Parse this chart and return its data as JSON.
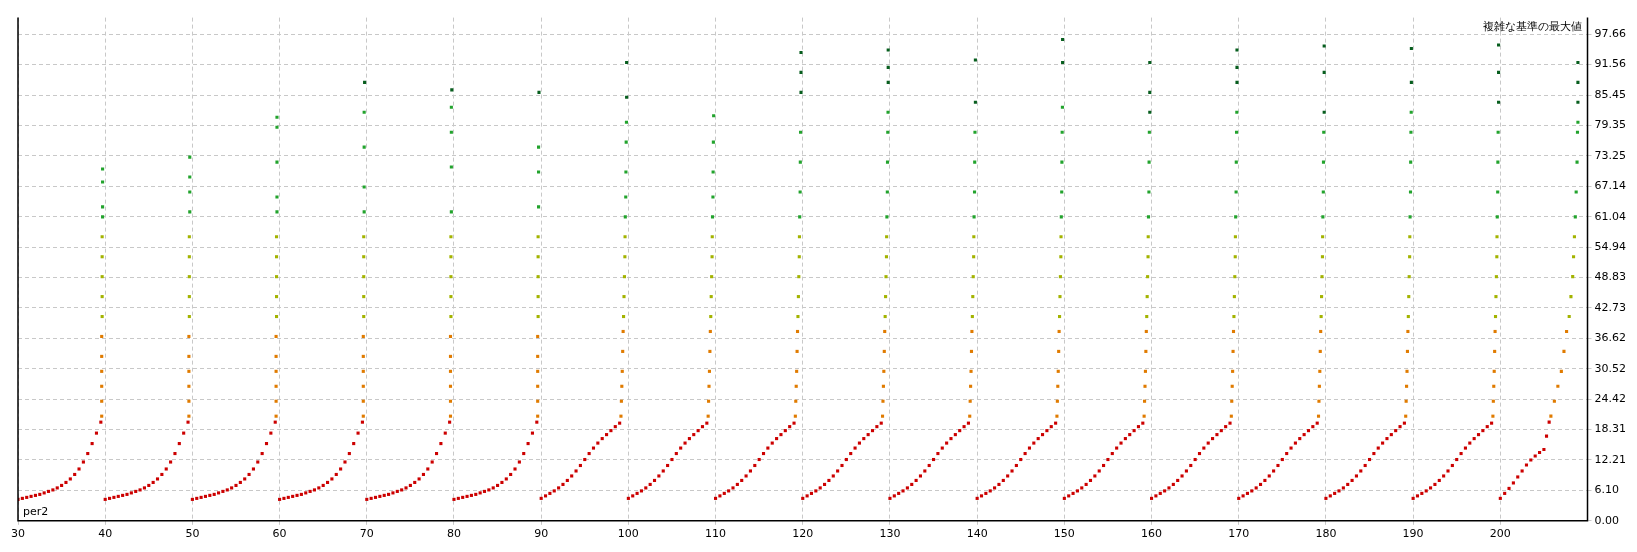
{
  "chart_data": {
    "type": "scatter",
    "title": "複雑な基準の最大値",
    "xlabel": "per2",
    "xlim": [
      30,
      210
    ],
    "xticks": [
      30,
      40,
      50,
      60,
      70,
      80,
      90,
      100,
      110,
      120,
      130,
      140,
      150,
      160,
      170,
      180,
      190,
      200
    ],
    "ylim": [
      0,
      101
    ],
    "yticks": [
      {
        "value": 0,
        "label": "0.00"
      },
      {
        "value": 6.1,
        "label": "6.10"
      },
      12.21,
      18.31,
      24.42,
      30.52,
      36.62,
      42.73,
      48.83,
      54.94,
      61.04,
      67.14,
      73.25,
      79.35,
      85.45,
      91.56,
      97.66
    ],
    "grid": true,
    "legend": false,
    "marker": "square",
    "series": [
      {
        "color": "#cc0000",
        "x": [
          30,
          30.5,
          31,
          31.5,
          32,
          32.5,
          33,
          33.5,
          34,
          34.5,
          35,
          35.5,
          36,
          36.5,
          37,
          37.5,
          38,
          38.5,
          39,
          39.5,
          40,
          40.5,
          41,
          41.5,
          42,
          42.5,
          43,
          43.5,
          44,
          44.5,
          45,
          45.5,
          46,
          46.5,
          47,
          47.5,
          48,
          48.5,
          49,
          49.5,
          50,
          50.5,
          51,
          51.5,
          52,
          52.5,
          53,
          53.5,
          54,
          54.5,
          55,
          55.5,
          56,
          56.5,
          57,
          57.5,
          58,
          58.5,
          59,
          59.5,
          60,
          60.5,
          61,
          61.5,
          62,
          62.5,
          63,
          63.5,
          64,
          64.5,
          65,
          65.5,
          66,
          66.5,
          67,
          67.5,
          68,
          68.5,
          69,
          69.5,
          70,
          70.5,
          71,
          71.5,
          72,
          72.5,
          73,
          73.5,
          74,
          74.5,
          75,
          75.5,
          76,
          76.5,
          77,
          77.5,
          78,
          78.5,
          79,
          79.5,
          80,
          80.5,
          81,
          81.5,
          82,
          82.5,
          83,
          83.5,
          84,
          84.5,
          85,
          85.5,
          86,
          86.5,
          87,
          87.5,
          88,
          88.5,
          89,
          89.5,
          90,
          90.5,
          91,
          91.5,
          92,
          92.5,
          93,
          93.5,
          94,
          94.5,
          95,
          95.5,
          96,
          96.5,
          97,
          97.5,
          98,
          98.5,
          99,
          100,
          100.5,
          101,
          101.5,
          102,
          102.5,
          103,
          103.5,
          104,
          104.5,
          105,
          105.5,
          106,
          106.5,
          107,
          107.5,
          108,
          108.5,
          109,
          110,
          110.5,
          111,
          111.5,
          112,
          112.5,
          113,
          113.5,
          114,
          114.5,
          115,
          115.5,
          116,
          116.5,
          117,
          117.5,
          118,
          118.5,
          119,
          120,
          120.5,
          121,
          121.5,
          122,
          122.5,
          123,
          123.5,
          124,
          124.5,
          125,
          125.5,
          126,
          126.5,
          127,
          127.5,
          128,
          128.5,
          129,
          130,
          130.5,
          131,
          131.5,
          132,
          132.5,
          133,
          133.5,
          134,
          134.5,
          135,
          135.5,
          136,
          136.5,
          137,
          137.5,
          138,
          138.5,
          139,
          140,
          140.5,
          141,
          141.5,
          142,
          142.5,
          143,
          143.5,
          144,
          144.5,
          145,
          145.5,
          146,
          146.5,
          147,
          147.5,
          148,
          148.5,
          149,
          150,
          150.5,
          151,
          151.5,
          152,
          152.5,
          153,
          153.5,
          154,
          154.5,
          155,
          155.5,
          156,
          156.5,
          157,
          157.5,
          158,
          158.5,
          159,
          160,
          160.5,
          161,
          161.5,
          162,
          162.5,
          163,
          163.5,
          164,
          164.5,
          165,
          165.5,
          166,
          166.5,
          167,
          167.5,
          168,
          168.5,
          169,
          170,
          170.5,
          171,
          171.5,
          172,
          172.5,
          173,
          173.5,
          174,
          174.5,
          175,
          175.5,
          176,
          176.5,
          177,
          177.5,
          178,
          178.5,
          179,
          180,
          180.5,
          181,
          181.5,
          182,
          182.5,
          183,
          183.5,
          184,
          184.5,
          185,
          185.5,
          186,
          186.5,
          187,
          187.5,
          188,
          188.5,
          189,
          190,
          190.5,
          191,
          191.5,
          192,
          192.5,
          193,
          193.5,
          194,
          194.5,
          195,
          195.5,
          196,
          196.5,
          197,
          197.5,
          198,
          198.5,
          199,
          200,
          200.5,
          201,
          201.5,
          202,
          202.5,
          203,
          203.5,
          204,
          204.5,
          205,
          205.3,
          205.6
        ],
        "values": [
          4.3,
          4.5,
          4.7,
          4.9,
          5.1,
          5.3,
          5.6,
          5.9,
          6.2,
          6.6,
          7.1,
          7.7,
          8.4,
          9.3,
          10.4,
          11.8,
          13.5,
          15.5,
          17.6,
          19.8,
          4.3,
          4.5,
          4.7,
          4.9,
          5.1,
          5.3,
          5.6,
          5.9,
          6.2,
          6.6,
          7.1,
          7.7,
          8.4,
          9.3,
          10.4,
          11.8,
          13.5,
          15.5,
          17.6,
          19.8,
          4.3,
          4.5,
          4.7,
          4.9,
          5.1,
          5.3,
          5.6,
          5.9,
          6.2,
          6.6,
          7.1,
          7.7,
          8.4,
          9.3,
          10.4,
          11.8,
          13.5,
          15.5,
          17.6,
          19.8,
          4.3,
          4.5,
          4.7,
          4.9,
          5.1,
          5.3,
          5.6,
          5.9,
          6.2,
          6.6,
          7.1,
          7.7,
          8.4,
          9.3,
          10.4,
          11.8,
          13.5,
          15.5,
          17.6,
          19.8,
          4.3,
          4.5,
          4.7,
          4.9,
          5.1,
          5.3,
          5.6,
          5.9,
          6.2,
          6.6,
          7.1,
          7.7,
          8.4,
          9.3,
          10.4,
          11.8,
          13.5,
          15.5,
          17.6,
          19.8,
          4.3,
          4.5,
          4.7,
          4.9,
          5.1,
          5.3,
          5.6,
          5.9,
          6.2,
          6.6,
          7.1,
          7.7,
          8.4,
          9.3,
          10.4,
          11.8,
          13.5,
          15.5,
          17.6,
          19.8,
          4.5,
          5,
          5.5,
          6,
          6.6,
          7.3,
          8.1,
          9,
          10,
          11.1,
          12.3,
          13.5,
          14.6,
          15.6,
          16.5,
          17.3,
          18.1,
          18.9,
          19.6,
          4.5,
          5,
          5.5,
          6,
          6.6,
          7.3,
          8.1,
          9,
          10,
          11.1,
          12.3,
          13.5,
          14.6,
          15.6,
          16.5,
          17.3,
          18.1,
          18.9,
          19.6,
          4.5,
          5,
          5.5,
          6,
          6.6,
          7.3,
          8.1,
          9,
          10,
          11.1,
          12.3,
          13.5,
          14.6,
          15.6,
          16.5,
          17.3,
          18.1,
          18.9,
          19.6,
          4.5,
          5,
          5.5,
          6,
          6.6,
          7.3,
          8.1,
          9,
          10,
          11.1,
          12.3,
          13.5,
          14.6,
          15.6,
          16.5,
          17.3,
          18.1,
          18.9,
          19.6,
          4.5,
          5,
          5.5,
          6,
          6.6,
          7.3,
          8.1,
          9,
          10,
          11.1,
          12.3,
          13.5,
          14.6,
          15.6,
          16.5,
          17.3,
          18.1,
          18.9,
          19.6,
          4.5,
          5,
          5.5,
          6,
          6.6,
          7.3,
          8.1,
          9,
          10,
          11.1,
          12.3,
          13.5,
          14.6,
          15.6,
          16.5,
          17.3,
          18.1,
          18.9,
          19.6,
          4.5,
          5,
          5.5,
          6,
          6.6,
          7.3,
          8.1,
          9,
          10,
          11.1,
          12.3,
          13.5,
          14.6,
          15.6,
          16.5,
          17.3,
          18.1,
          18.9,
          19.6,
          4.5,
          5,
          5.5,
          6,
          6.6,
          7.3,
          8.1,
          9,
          10,
          11.1,
          12.3,
          13.5,
          14.6,
          15.6,
          16.5,
          17.3,
          18.1,
          18.9,
          19.6,
          4.5,
          5,
          5.5,
          6,
          6.6,
          7.3,
          8.1,
          9,
          10,
          11.1,
          12.3,
          13.5,
          14.6,
          15.6,
          16.5,
          17.3,
          18.1,
          18.9,
          19.6,
          4.5,
          5,
          5.5,
          6,
          6.6,
          7.3,
          8.1,
          9,
          10,
          11.1,
          12.3,
          13.5,
          14.6,
          15.6,
          16.5,
          17.3,
          18.1,
          18.9,
          19.6,
          4.5,
          5,
          5.5,
          6,
          6.6,
          7.3,
          8.1,
          9,
          10,
          11.1,
          12.3,
          13.5,
          14.6,
          15.6,
          16.5,
          17.3,
          18.1,
          18.9,
          19.6,
          4.5,
          5.5,
          6.5,
          7.6,
          8.8,
          10,
          11.2,
          12.2,
          13,
          13.7,
          14.3,
          17,
          19.8
        ]
      },
      {
        "color": "#e07b00",
        "x": [
          39.6,
          39.6,
          39.6,
          39.6,
          39.6,
          39.6,
          49.6,
          49.6,
          49.6,
          49.6,
          49.6,
          49.6,
          59.6,
          59.6,
          59.6,
          59.6,
          59.6,
          59.6,
          69.6,
          69.6,
          69.6,
          69.6,
          69.6,
          69.6,
          79.6,
          79.6,
          79.6,
          79.6,
          79.6,
          79.6,
          89.6,
          89.6,
          89.6,
          89.6,
          89.6,
          89.6,
          99.15,
          99.2,
          99.25,
          99.3,
          99.35,
          99.4,
          109.15,
          109.2,
          109.25,
          109.3,
          109.35,
          109.4,
          119.15,
          119.2,
          119.25,
          119.3,
          119.35,
          119.4,
          129.15,
          129.2,
          129.25,
          129.3,
          129.35,
          129.4,
          139.15,
          139.2,
          139.25,
          139.3,
          139.35,
          139.4,
          149.15,
          149.2,
          149.25,
          149.3,
          149.35,
          149.4,
          159.15,
          159.2,
          159.25,
          159.3,
          159.35,
          159.4,
          169.15,
          169.2,
          169.25,
          169.3,
          169.35,
          169.4,
          179.15,
          179.2,
          179.25,
          179.3,
          179.35,
          179.4,
          189.15,
          189.2,
          189.25,
          189.3,
          189.35,
          189.4,
          199.15,
          199.2,
          199.25,
          199.3,
          199.35,
          199.4,
          205.8,
          206.2,
          206.6,
          207,
          207.3,
          207.6
        ],
        "values": [
          21,
          24,
          27,
          30,
          33,
          37,
          21,
          24,
          27,
          30,
          33,
          37,
          21,
          24,
          27,
          30,
          33,
          37,
          21,
          24,
          27,
          30,
          33,
          37,
          21,
          24,
          27,
          30,
          33,
          37,
          21,
          24,
          27,
          30,
          33,
          37,
          21,
          24,
          27,
          30,
          34,
          38,
          21,
          24,
          27,
          30,
          34,
          38,
          21,
          24,
          27,
          30,
          34,
          38,
          21,
          24,
          27,
          30,
          34,
          38,
          21,
          24,
          27,
          30,
          34,
          38,
          21,
          24,
          27,
          30,
          34,
          38,
          21,
          24,
          27,
          30,
          34,
          38,
          21,
          24,
          27,
          30,
          34,
          38,
          21,
          24,
          27,
          30,
          34,
          38,
          21,
          24,
          27,
          30,
          34,
          38,
          21,
          24,
          27,
          30,
          34,
          38,
          21,
          24,
          27,
          30,
          34,
          38
        ]
      },
      {
        "color": "#a3b300",
        "x": [
          39.65,
          39.65,
          39.65,
          39.65,
          39.65,
          49.65,
          49.65,
          49.65,
          49.65,
          49.65,
          59.65,
          59.65,
          59.65,
          59.65,
          59.65,
          69.65,
          69.65,
          69.65,
          69.65,
          69.65,
          79.65,
          79.65,
          79.65,
          79.65,
          79.65,
          89.65,
          89.65,
          89.65,
          89.65,
          89.65,
          99.45,
          99.5,
          99.55,
          99.6,
          99.62,
          109.45,
          109.5,
          109.55,
          109.6,
          109.62,
          119.45,
          119.5,
          119.55,
          119.6,
          119.62,
          129.45,
          129.5,
          129.55,
          129.6,
          129.62,
          139.45,
          139.5,
          139.55,
          139.6,
          139.62,
          149.45,
          149.5,
          149.55,
          149.6,
          149.62,
          159.45,
          159.5,
          159.55,
          159.6,
          159.62,
          169.45,
          169.5,
          169.55,
          169.6,
          169.62,
          179.45,
          179.5,
          179.55,
          179.6,
          179.62,
          189.45,
          189.5,
          189.55,
          189.6,
          189.62,
          199.45,
          199.5,
          199.55,
          199.6,
          199.62,
          207.9,
          208.1,
          208.3,
          208.4,
          208.5
        ],
        "values": [
          41,
          45,
          49,
          53,
          57,
          41,
          45,
          49,
          53,
          57,
          41,
          45,
          49,
          53,
          57,
          41,
          45,
          49,
          53,
          57,
          41,
          45,
          49,
          53,
          57,
          41,
          45,
          49,
          53,
          57,
          41,
          45,
          49,
          53,
          57,
          41,
          45,
          49,
          53,
          57,
          41,
          45,
          49,
          53,
          57,
          41,
          45,
          49,
          53,
          57,
          41,
          45,
          49,
          53,
          57,
          41,
          45,
          49,
          53,
          57,
          41,
          45,
          49,
          53,
          57,
          41,
          45,
          49,
          53,
          57,
          41,
          45,
          49,
          53,
          57,
          41,
          45,
          49,
          53,
          57,
          41,
          45,
          49,
          53,
          57,
          41,
          45,
          49,
          53,
          57
        ]
      },
      {
        "color": "#22a32d",
        "x": [
          39.7,
          39.7,
          39.7,
          39.7,
          49.7,
          49.7,
          49.7,
          49.7,
          59.7,
          59.7,
          59.7,
          59.7,
          59.7,
          69.7,
          69.7,
          69.7,
          69.7,
          79.7,
          79.7,
          79.7,
          79.7,
          89.7,
          89.7,
          89.7,
          99.65,
          99.7,
          99.72,
          99.75,
          99.78,
          109.65,
          109.7,
          109.72,
          109.75,
          109.78,
          119.65,
          119.7,
          119.72,
          119.75,
          129.65,
          129.7,
          129.72,
          129.75,
          129.78,
          139.65,
          139.7,
          139.72,
          139.75,
          149.65,
          149.7,
          149.72,
          149.75,
          149.78,
          159.65,
          159.7,
          159.72,
          159.75,
          169.65,
          169.7,
          169.72,
          169.75,
          169.78,
          179.65,
          179.7,
          179.72,
          179.75,
          189.65,
          189.7,
          189.72,
          189.75,
          189.78,
          199.65,
          199.7,
          199.72,
          199.75,
          208.6,
          208.7,
          208.8,
          208.85,
          208.9
        ],
        "values": [
          61,
          63,
          68,
          70.6,
          62,
          66,
          69,
          73,
          62,
          65,
          72,
          79,
          81,
          62,
          67,
          75,
          82,
          62,
          71,
          78,
          83,
          63,
          70,
          75,
          61,
          65,
          70,
          76,
          80,
          61,
          65,
          70,
          76,
          81.3,
          61,
          66,
          72,
          78,
          61,
          66,
          72,
          78,
          82,
          61,
          66,
          72,
          78,
          61,
          66,
          72,
          78,
          83,
          61,
          66,
          72,
          78,
          61,
          66,
          72,
          78,
          82,
          61,
          66,
          72,
          78,
          61,
          66,
          72,
          78,
          82,
          61,
          66,
          72,
          78,
          61,
          66,
          72,
          78,
          80
        ]
      },
      {
        "color": "#075e1e",
        "x": [
          69.75,
          79.75,
          89.75,
          99.8,
          99.8,
          119.8,
          119.8,
          119.8,
          129.8,
          129.8,
          129.8,
          139.8,
          139.8,
          149.8,
          149.8,
          159.8,
          159.8,
          159.8,
          169.8,
          169.8,
          169.8,
          179.8,
          179.8,
          179.8,
          189.8,
          189.8,
          199.8,
          199.8,
          199.8,
          208.9,
          208.9,
          208.9
        ],
        "values": [
          88,
          86.5,
          86,
          85,
          92,
          86,
          90,
          94,
          88,
          91,
          94.5,
          84,
          92.5,
          92,
          96.6,
          82,
          86,
          92,
          88,
          91,
          94.5,
          82,
          90,
          95.3,
          88,
          94.8,
          84,
          90,
          95.5,
          84,
          88,
          92
        ]
      }
    ]
  }
}
